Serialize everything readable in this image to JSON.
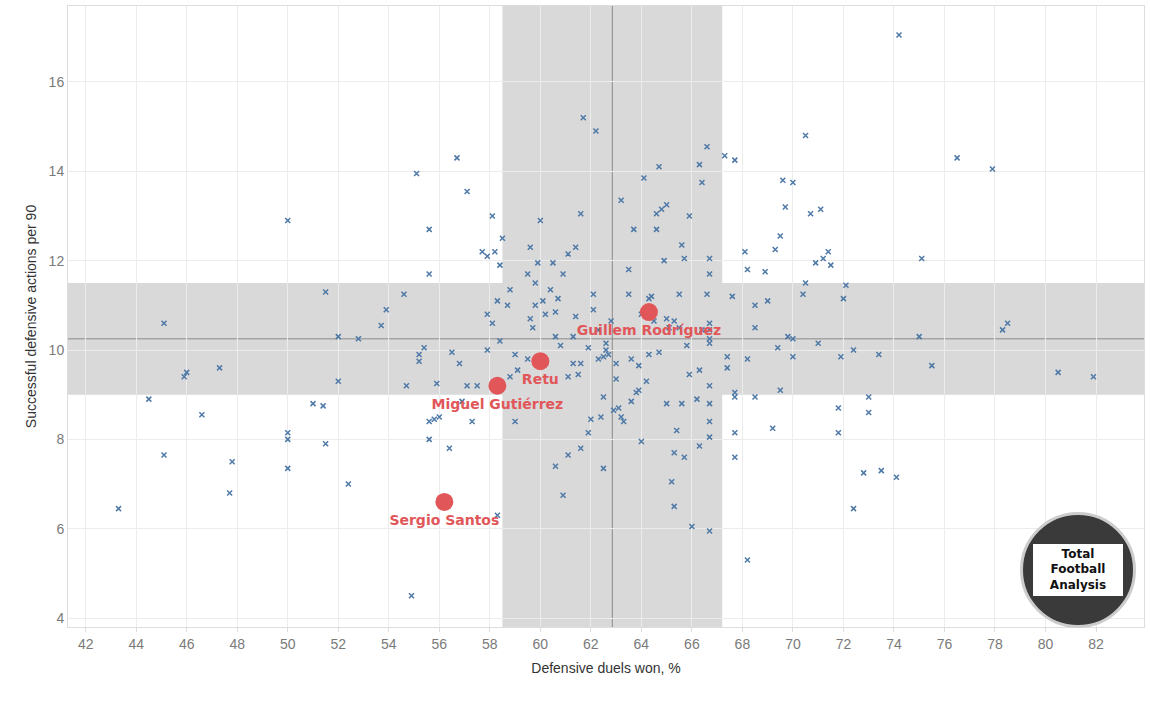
{
  "chart_data": {
    "type": "scatter",
    "x_label": "Defensive duels won, %",
    "y_label": "Successful defensive actions per 90",
    "watermark": "Total Football Analysis",
    "xlim": [
      41.3,
      83.9
    ],
    "ylim": [
      3.8,
      17.7
    ],
    "xticks": [
      42,
      44,
      46,
      48,
      50,
      52,
      54,
      56,
      58,
      60,
      62,
      64,
      66,
      68,
      70,
      72,
      74,
      76,
      78,
      80,
      82
    ],
    "yticks": [
      4,
      6,
      8,
      10,
      12,
      14,
      16
    ],
    "grid": true,
    "bands": {
      "x": [
        58.5,
        67.2
      ],
      "y": [
        9.0,
        11.5
      ]
    },
    "reference_lines": {
      "x": 62.85,
      "y": 10.25
    },
    "series": [
      {
        "color": "#4e79a7",
        "marker": "x",
        "x": [
          43.3,
          44.5,
          45.1,
          45.1,
          45.9,
          46.0,
          46.6,
          47.3,
          47.8,
          47.7,
          50.0,
          50.0,
          50.0,
          50.0,
          51.0,
          51.4,
          51.5,
          51.5,
          52.0,
          52.0,
          52.4,
          52.8,
          53.7,
          53.9,
          54.6,
          54.7,
          54.9,
          55.1,
          55.2,
          55.2,
          55.4,
          55.6,
          55.6,
          55.6,
          55.6,
          55.8,
          55.9,
          56.0,
          56.4,
          56.5,
          56.7,
          56.8,
          56.9,
          57.1,
          57.1,
          57.3,
          57.5,
          57.7,
          57.9,
          57.9,
          57.9,
          58.1,
          58.1,
          58.2,
          58.3,
          58.3,
          58.4,
          58.5,
          58.4,
          58.7,
          58.8,
          58.8,
          59.0,
          59.0,
          59.1,
          59.5,
          59.5,
          59.6,
          59.6,
          59.7,
          59.8,
          59.8,
          59.9,
          60.0,
          60.1,
          60.2,
          60.4,
          60.5,
          60.6,
          60.6,
          60.6,
          60.7,
          60.8,
          60.9,
          60.9,
          61.1,
          61.1,
          61.1,
          61.3,
          61.3,
          61.4,
          61.4,
          61.5,
          61.6,
          61.6,
          61.6,
          61.7,
          61.9,
          61.9,
          62.0,
          62.1,
          62.1,
          62.2,
          62.3,
          62.3,
          62.4,
          62.5,
          62.5,
          62.5,
          62.6,
          62.6,
          62.7,
          62.8,
          62.9,
          63.0,
          63.0,
          63.1,
          63.2,
          63.2,
          63.3,
          63.5,
          63.5,
          63.6,
          63.6,
          63.7,
          63.8,
          63.9,
          63.9,
          64.0,
          64.0,
          64.1,
          64.2,
          64.3,
          64.3,
          64.4,
          64.5,
          64.6,
          64.6,
          64.7,
          64.7,
          64.8,
          64.9,
          65.0,
          65.0,
          65.0,
          65.1,
          65.2,
          65.3,
          65.3,
          65.3,
          65.4,
          65.5,
          65.5,
          65.6,
          65.6,
          65.7,
          65.7,
          65.8,
          65.9,
          65.9,
          66.0,
          66.2,
          66.3,
          66.3,
          66.3,
          66.4,
          66.4,
          66.6,
          66.6,
          66.7,
          66.7,
          66.7,
          66.7,
          66.7,
          66.7,
          66.7,
          66.7,
          66.7,
          66.7,
          66.7,
          67.3,
          67.4,
          67.4,
          67.6,
          67.7,
          67.7,
          67.7,
          67.7,
          67.7,
          68.1,
          68.2,
          68.2,
          68.2,
          68.5,
          68.5,
          68.5,
          68.9,
          69.0,
          69.2,
          69.3,
          69.4,
          69.5,
          69.5,
          69.6,
          69.7,
          69.8,
          70.0,
          70.0,
          70.0,
          70.4,
          70.5,
          70.5,
          70.7,
          70.9,
          71.0,
          71.1,
          71.2,
          71.4,
          71.5,
          71.8,
          71.8,
          71.9,
          72.0,
          72.1,
          72.4,
          72.4,
          72.8,
          73.0,
          73.0,
          73.4,
          73.5,
          74.1,
          74.2,
          75.0,
          75.1,
          75.5,
          76.5,
          77.9,
          78.3,
          78.5,
          80.5,
          81.9
        ],
        "y": [
          6.45,
          8.9,
          10.6,
          7.65,
          9.4,
          9.5,
          8.55,
          9.6,
          7.5,
          6.8,
          12.9,
          8.15,
          8.0,
          7.35,
          8.8,
          8.75,
          7.9,
          11.3,
          10.3,
          9.3,
          7.0,
          10.25,
          10.55,
          10.9,
          11.25,
          9.2,
          4.5,
          13.95,
          9.75,
          9.9,
          10.05,
          11.7,
          12.7,
          8.4,
          8.0,
          8.45,
          9.25,
          8.5,
          7.8,
          9.95,
          14.3,
          9.7,
          8.85,
          13.55,
          9.2,
          8.4,
          9.2,
          12.2,
          12.1,
          10.8,
          10.0,
          10.6,
          13.0,
          12.2,
          11.1,
          6.3,
          11.9,
          12.5,
          10.2,
          11.0,
          11.35,
          9.4,
          9.9,
          8.4,
          9.55,
          9.8,
          11.7,
          12.3,
          10.7,
          10.5,
          11.5,
          11.0,
          11.95,
          12.9,
          11.1,
          10.8,
          11.35,
          11.95,
          7.4,
          10.85,
          10.3,
          11.15,
          10.1,
          6.75,
          11.7,
          9.4,
          12.15,
          7.65,
          10.3,
          9.7,
          12.3,
          10.75,
          9.45,
          9.7,
          7.8,
          13.05,
          15.2,
          10.05,
          8.15,
          8.45,
          11.25,
          10.9,
          14.9,
          10.45,
          9.8,
          8.5,
          8.95,
          7.35,
          9.85,
          10.0,
          10.15,
          9.9,
          10.65,
          8.65,
          9.7,
          9.35,
          8.7,
          13.35,
          8.5,
          8.4,
          11.25,
          11.8,
          8.85,
          9.8,
          12.7,
          9.05,
          9.1,
          9.65,
          7.95,
          10.8,
          13.85,
          9.3,
          11.15,
          9.9,
          11.2,
          10.65,
          12.7,
          13.05,
          14.1,
          9.95,
          13.15,
          12.0,
          13.25,
          8.8,
          10.7,
          10.5,
          7.05,
          6.5,
          7.7,
          10.65,
          8.2,
          11.25,
          10.5,
          12.35,
          8.8,
          12.05,
          7.6,
          10.1,
          9.45,
          13.0,
          6.05,
          8.9,
          14.15,
          7.85,
          9.55,
          13.75,
          10.45,
          11.25,
          14.55,
          12.05,
          11.7,
          10.45,
          10.6,
          10.25,
          10.15,
          9.2,
          8.8,
          8.4,
          8.05,
          5.95,
          14.35,
          9.6,
          9.85,
          11.2,
          14.25,
          9.05,
          8.95,
          8.15,
          7.6,
          12.2,
          11.8,
          5.3,
          9.8,
          8.95,
          10.5,
          11.0,
          11.75,
          11.1,
          8.25,
          12.25,
          10.05,
          12.55,
          9.1,
          13.8,
          13.2,
          10.3,
          13.75,
          10.25,
          9.85,
          11.25,
          14.8,
          11.5,
          13.05,
          11.95,
          10.15,
          13.15,
          12.05,
          12.2,
          11.9,
          8.7,
          8.15,
          9.85,
          11.15,
          11.45,
          6.45,
          10.0,
          7.25,
          8.95,
          8.6,
          9.9,
          7.3,
          7.15,
          17.05,
          10.3,
          12.05,
          9.65,
          14.3,
          14.05,
          10.45,
          10.6,
          9.5,
          9.4
        ]
      },
      {
        "color": "#e15759",
        "marker": "circle",
        "labels": [
          "Guillem Rodríguez",
          "Retu",
          "Miguel Gutiérrez",
          "Sergio Santos"
        ],
        "x": [
          64.3,
          60.0,
          58.3,
          56.2
        ],
        "y": [
          10.85,
          9.75,
          9.2,
          6.6
        ]
      }
    ]
  }
}
